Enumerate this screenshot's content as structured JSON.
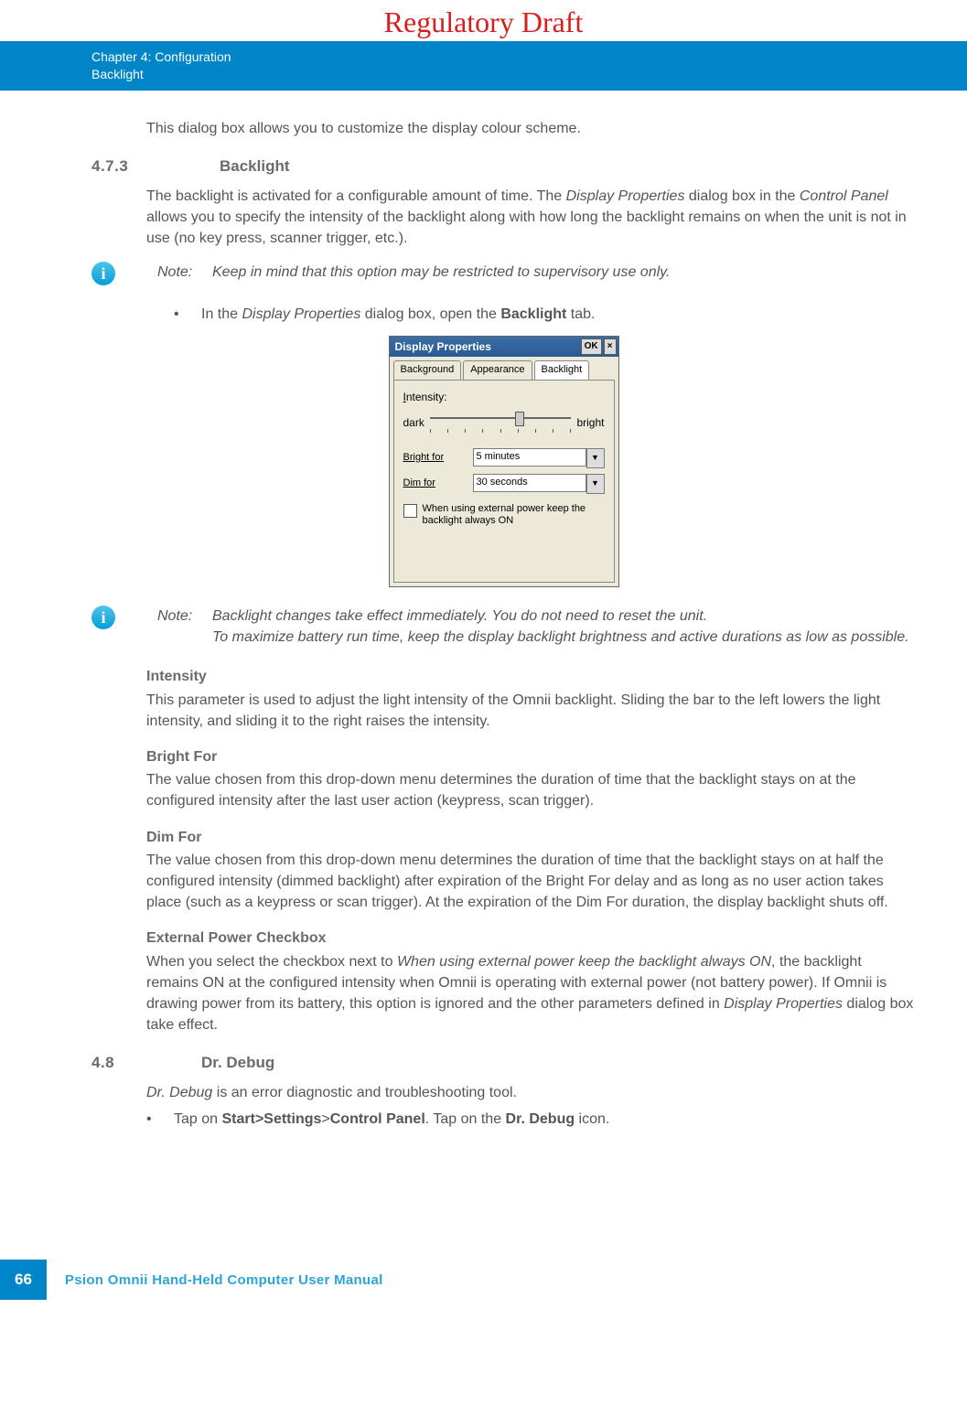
{
  "watermark": "Regulatory Draft",
  "header": {
    "chapter": "Chapter 4:  Configuration",
    "topic": "Backlight"
  },
  "intro": "This dialog box allows you to customize the display colour scheme.",
  "sec473": {
    "num": "4.7.3",
    "title": "Backlight",
    "body_parts": [
      "The backlight is activated for a configurable amount of time. The ",
      "Display Properties",
      " dialog box in the ",
      "Control Panel",
      " allows you to specify the intensity of the backlight along with how long the backlight remains on when the unit is not in use (no key press, scanner trigger, etc.)."
    ]
  },
  "note1": {
    "label": "Note:",
    "text": "Keep in mind that this option may be restricted to supervisory use only."
  },
  "bullet1_parts": [
    "In the ",
    "Display Properties",
    " dialog box, open the ",
    "Backlight",
    " tab."
  ],
  "dialog": {
    "title": "Display Properties",
    "ok": "OK",
    "close": "×",
    "tabs": [
      "Background",
      "Appearance",
      "Backlight"
    ],
    "active_tab": 2,
    "intensity_label": "Intensity:",
    "dark": "dark",
    "bright": "bright",
    "slider_pos_pct": 60,
    "bright_for_label": "Bright for",
    "bright_for_value": "5 minutes",
    "dim_for_label": "Dim for",
    "dim_for_value": "30 seconds",
    "checkbox_label": "When using external power keep the backlight always ON"
  },
  "note2": {
    "label": "Note:",
    "line1": "Backlight changes take effect immediately. You do not need to reset the unit.",
    "line2": "To maximize battery run time, keep the display backlight brightness and active durations as low as possible."
  },
  "intensity": {
    "head": "Intensity",
    "text": "This parameter is used to adjust the light intensity of the Omnii backlight. Sliding the bar to the left lowers the light intensity, and sliding it to the right raises the intensity."
  },
  "brightfor": {
    "head": "Bright For",
    "text": "The value chosen from this drop-down menu determines the duration of time that the backlight stays on at the configured intensity after the last user action (keypress, scan trigger)."
  },
  "dimfor": {
    "head": "Dim For",
    "text": "The value chosen from this drop-down menu determines the duration of time that the backlight stays on at half the configured intensity (dimmed backlight) after expiration of the Bright For delay and as long as no user action takes place (such as a keypress or scan trigger). At the expiration of the Dim For duration, the display backlight shuts off."
  },
  "extpower": {
    "head": "External Power Checkbox",
    "parts": [
      "When you select the checkbox next to ",
      "When using external power keep the backlight always ON",
      ", the backlight remains ON at the configured intensity when Omnii is operating with external power (not battery power). If Omnii is drawing power from its battery, this option is ignored and the other parameters defined in ",
      "Display Properties",
      " dialog box take effect."
    ]
  },
  "sec48": {
    "num": "4.8",
    "title": "Dr. Debug",
    "intro_parts": [
      "Dr. Debug",
      " is an error diagnostic and troubleshooting tool."
    ],
    "bullet_parts": [
      "Tap on ",
      "Start>Settings",
      ">",
      "Control Panel",
      ". Tap on the ",
      "Dr. Debug",
      " icon."
    ]
  },
  "footer": {
    "page": "66",
    "manual": "Psion Omnii Hand-Held Computer User Manual"
  }
}
